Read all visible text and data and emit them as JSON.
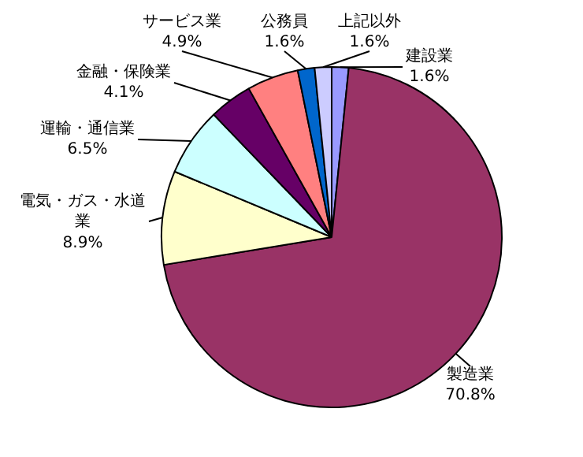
{
  "chart_data": {
    "type": "pie",
    "categories": [
      "建設業",
      "製造業",
      "電気・ガス・水道業",
      "運輸・通信業",
      "金融・保険業",
      "サービス業",
      "公務員",
      "上記以外"
    ],
    "values": [
      1.6,
      70.8,
      8.9,
      6.5,
      4.1,
      4.9,
      1.6,
      1.6
    ],
    "value_labels": [
      "1.6%",
      "70.8%",
      "8.9%",
      "6.5%",
      "4.1%",
      "4.9%",
      "1.6%",
      "1.6%"
    ],
    "colors": [
      "#9999ff",
      "#993366",
      "#ffffcc",
      "#ccffff",
      "#660066",
      "#ff8080",
      "#0066cc",
      "#ccccff"
    ]
  }
}
